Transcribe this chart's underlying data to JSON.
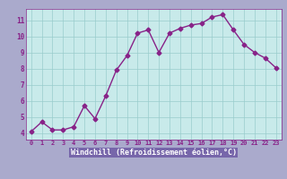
{
  "x": [
    0,
    1,
    2,
    3,
    4,
    5,
    6,
    7,
    8,
    9,
    10,
    11,
    12,
    13,
    14,
    15,
    16,
    17,
    18,
    19,
    20,
    21,
    22,
    23
  ],
  "y": [
    4.1,
    4.7,
    4.2,
    4.2,
    4.4,
    5.7,
    4.9,
    6.3,
    7.9,
    8.8,
    10.2,
    10.4,
    9.0,
    10.2,
    10.5,
    10.7,
    10.8,
    11.2,
    11.35,
    10.4,
    9.5,
    9.0,
    8.65,
    8.05
  ],
  "line_color": "#882288",
  "marker": "D",
  "markersize": 2.5,
  "linewidth": 1.0,
  "bg_color": "#c8eaea",
  "grid_color": "#99cccc",
  "xlabel": "Windchill (Refroidissement éolien,°C)",
  "xlabel_color": "#ffffff",
  "xlabel_bg": "#7766aa",
  "tick_color": "#882288",
  "xlim": [
    -0.5,
    23.5
  ],
  "ylim": [
    3.6,
    11.7
  ],
  "yticks": [
    4,
    5,
    6,
    7,
    8,
    9,
    10,
    11
  ],
  "fig_bg": "#aaaacc"
}
